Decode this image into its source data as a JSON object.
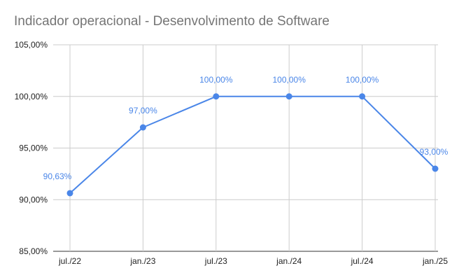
{
  "chart_data": {
    "type": "line",
    "title": "Indicador operacional - Desenvolvimento de Software",
    "xlabel": "",
    "ylabel": "",
    "x_ticks": [
      "jul./22",
      "jan./23",
      "jul./23",
      "jan./24",
      "jul./24",
      "jan./25"
    ],
    "y_ticks": [
      "85,00%",
      "90,00%",
      "95,00%",
      "100,00%",
      "105,00%"
    ],
    "ylim": [
      85,
      105
    ],
    "y_tick_values": [
      85,
      90,
      95,
      100,
      105
    ],
    "grid": true,
    "legend": "none",
    "series": [
      {
        "color": "#4a86e8",
        "points": [
          {
            "x": "2022-07",
            "y": 90.63,
            "label": "90,63%"
          },
          {
            "x": "2023-01",
            "y": 97.0,
            "label": "97,00%"
          },
          {
            "x": "2023-07",
            "y": 100.0,
            "label": "100,00%"
          },
          {
            "x": "2024-01",
            "y": 100.0,
            "label": "100,00%"
          },
          {
            "x": "2024-07",
            "y": 100.0,
            "label": "100,00%"
          },
          {
            "x": "2025-01",
            "y": 93.0,
            "label": "93,00%"
          }
        ]
      }
    ]
  }
}
